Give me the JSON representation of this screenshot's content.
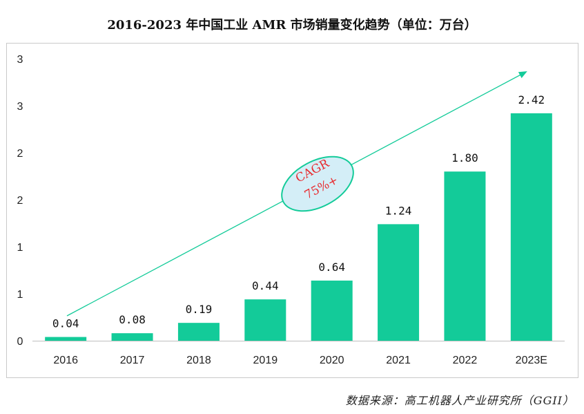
{
  "title": "2016-2023 年中国工业 AMR 市场销量变化趋势（单位：万台）",
  "source": "数据来源：高工机器人产业研究所（GGII）",
  "chart_data": {
    "type": "bar",
    "title": "2016-2023 年中国工业 AMR 市场销量变化趋势（单位：万台）",
    "unit": "万台",
    "categories": [
      "2016",
      "2017",
      "2018",
      "2019",
      "2020",
      "2021",
      "2022",
      "2023E"
    ],
    "values": [
      0.04,
      0.08,
      0.19,
      0.44,
      0.64,
      1.24,
      1.8,
      2.42
    ],
    "data_labels": [
      "0.04",
      "0.08",
      "0.19",
      "0.44",
      "0.64",
      "1.24",
      "1.80",
      "2.42"
    ],
    "y_tick_labels": [
      "0",
      "1",
      "1",
      "2",
      "2",
      "3",
      "3"
    ],
    "ylim": [
      0,
      3.0
    ],
    "xlabel": "",
    "ylabel": "",
    "grid": false,
    "legend": "none",
    "bar_color": "#13cb99",
    "annotation": {
      "line1": "CAGR",
      "line2": "75%+",
      "text_color": "#e8292d",
      "fill_color": "#d4eef7",
      "border_color": "#13cb99",
      "arrow_color": "#13cb99"
    }
  }
}
